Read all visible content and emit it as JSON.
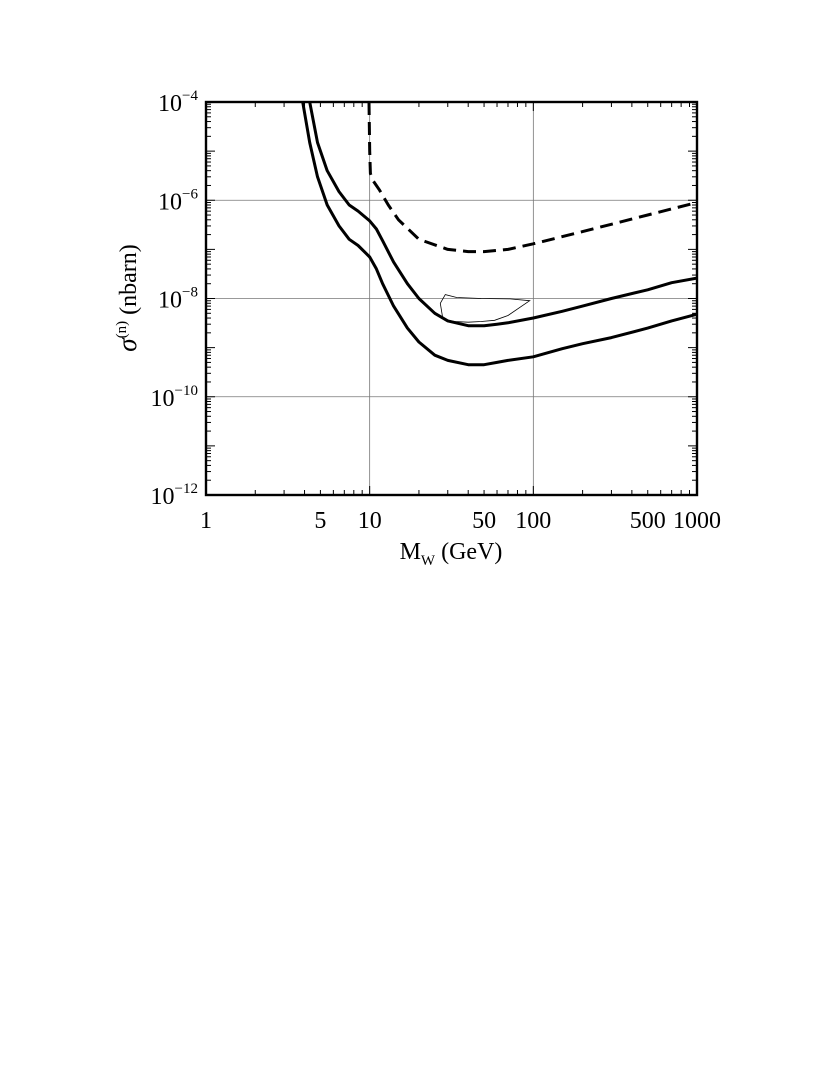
{
  "chart_data": {
    "type": "line",
    "xscale": "log",
    "yscale": "log",
    "xlim": [
      1,
      1000
    ],
    "ylim": [
      1e-12,
      0.0001
    ],
    "grid": true,
    "xlabel": {
      "main": "M",
      "sub": "W",
      "rest": " (GeV)"
    },
    "ylabel": {
      "main": "σ",
      "sup": "(n)",
      "rest": " (nbarn)"
    },
    "x_ticks": [
      {
        "value": 1,
        "label": "1"
      },
      {
        "value": 5,
        "label": "5"
      },
      {
        "value": 10,
        "label": "10"
      },
      {
        "value": 50,
        "label": "50"
      },
      {
        "value": 100,
        "label": "100"
      },
      {
        "value": 500,
        "label": "500"
      },
      {
        "value": 1000,
        "label": "1000"
      }
    ],
    "y_ticks": [
      {
        "value": 0.0001,
        "base": "10",
        "exp": "−4"
      },
      {
        "value": 1e-06,
        "base": "10",
        "exp": "−6"
      },
      {
        "value": 1e-08,
        "base": "10",
        "exp": "−8"
      },
      {
        "value": 1e-10,
        "base": "10",
        "exp": "−10"
      },
      {
        "value": 1e-12,
        "base": "10",
        "exp": "−12"
      }
    ],
    "x_gridlines": [
      10,
      100
    ],
    "y_gridlines": [
      1e-06,
      1e-08,
      1e-10
    ],
    "series": [
      {
        "style": "dashed",
        "stroke_width": 3,
        "x": [
          9.9,
          10.0,
          10.1,
          10.5,
          11.5,
          13,
          15,
          20,
          30,
          40,
          50,
          70,
          100,
          200,
          500,
          1000
        ],
        "y": [
          0.0001,
          1e-05,
          3.5e-06,
          2.5e-06,
          1.6e-06,
          8e-07,
          4e-07,
          1.6e-07,
          1e-07,
          9e-08,
          9e-08,
          1e-07,
          1.3e-07,
          2.3e-07,
          5e-07,
          9e-07
        ]
      },
      {
        "style": "solid",
        "stroke_width": 3,
        "x": [
          4.3,
          4.8,
          5.5,
          6.5,
          7.5,
          8.5,
          10,
          11,
          12,
          14,
          17,
          20,
          25,
          30,
          40,
          50,
          60,
          70,
          100,
          150,
          200,
          300,
          500,
          700,
          1000
        ],
        "y": [
          0.0001,
          1.5e-05,
          4e-06,
          1.5e-06,
          8e-07,
          6e-07,
          3.8e-07,
          2.6e-07,
          1.5e-07,
          5.5e-08,
          2e-08,
          1e-08,
          5e-09,
          3.5e-09,
          2.8e-09,
          2.8e-09,
          3e-09,
          3.2e-09,
          4e-09,
          5.5e-09,
          7e-09,
          1e-08,
          1.5e-08,
          2.1e-08,
          2.6e-08
        ]
      },
      {
        "style": "solid",
        "stroke_width": 3,
        "x": [
          3.9,
          4.3,
          4.8,
          5.5,
          6.5,
          7.5,
          8.5,
          10,
          11,
          12,
          14,
          17,
          20,
          25,
          30,
          40,
          50,
          60,
          70,
          100,
          150,
          200,
          300,
          500,
          700,
          1000
        ],
        "y": [
          0.0001,
          1.5e-05,
          3e-06,
          8e-07,
          3e-07,
          1.6e-07,
          1.2e-07,
          7e-08,
          4e-08,
          2e-08,
          7e-09,
          2.5e-09,
          1.3e-09,
          7e-10,
          5.5e-10,
          4.5e-10,
          4.5e-10,
          5e-10,
          5.5e-10,
          6.5e-10,
          9.5e-10,
          1.2e-09,
          1.6e-09,
          2.5e-09,
          3.5e-09,
          4.8e-09
        ]
      }
    ],
    "region": {
      "style": "thin-closed",
      "stroke_width": 0.8,
      "x": [
        27,
        29,
        34,
        48,
        72,
        95,
        85,
        70,
        58,
        48,
        40,
        33,
        28,
        27
      ],
      "y": [
        8e-09,
        1.2e-08,
        1.05e-08,
        1e-08,
        9.8e-09,
        9e-09,
        7e-09,
        4.5e-09,
        3.6e-09,
        3.4e-09,
        3.3e-09,
        3.4e-09,
        3.8e-09,
        8e-09
      ]
    }
  }
}
